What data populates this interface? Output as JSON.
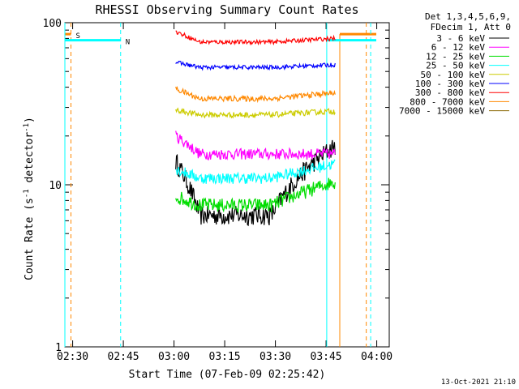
{
  "chart_data": {
    "type": "line",
    "title": "RHESSI Observing Summary Count Rates",
    "xlabel": "Start Time (07-Feb-09 02:25:42)",
    "ylabel_main": "Count Rate (s",
    "ylabel_sup1": "-1",
    "ylabel_mid": " detector",
    "ylabel_sup2": "-1",
    "ylabel_end": ")",
    "yscale": "log",
    "ylim": [
      1,
      100
    ],
    "xlim_minutes": [
      2.0,
      98.0
    ],
    "x_ticks": [
      {
        "label": "02:30",
        "min": 4.3
      },
      {
        "label": "02:45",
        "min": 19.3
      },
      {
        "label": "03:00",
        "min": 34.3
      },
      {
        "label": "03:15",
        "min": 49.3
      },
      {
        "label": "03:30",
        "min": 64.3
      },
      {
        "label": "03:45",
        "min": 79.3
      },
      {
        "label": "04:00",
        "min": 94.3
      }
    ],
    "y_ticks": [
      {
        "label": "1",
        "value": 1
      },
      {
        "label": "10",
        "value": 10
      },
      {
        "label": "100",
        "value": 100
      }
    ],
    "legend_header_1": "Det 1,3,4,5,6,9,",
    "legend_header_2": "FDecim 1, Att 0",
    "series": [
      {
        "name": "3 - 6 keV",
        "color": "#000000",
        "start": 14.0,
        "end": 17.5,
        "level": 6.5,
        "noise": 0.14
      },
      {
        "name": "6 - 12 keV",
        "color": "#ff00ff",
        "start": 20.0,
        "end": 15.5,
        "level": 15.5,
        "noise": 0.08
      },
      {
        "name": "12 - 25 keV",
        "color": "#00dd00",
        "start": 8.5,
        "end": 10.5,
        "level": 7.5,
        "noise": 0.1
      },
      {
        "name": "25 - 50 keV",
        "color": "#00ffff",
        "start": 12.5,
        "end": 13.5,
        "level": 11.0,
        "noise": 0.08
      },
      {
        "name": "50 - 100 keV",
        "color": "#cccc00",
        "start": 29.0,
        "end": 28.5,
        "level": 27.0,
        "noise": 0.04
      },
      {
        "name": "100 - 300 keV",
        "color": "#0000ff",
        "start": 57.0,
        "end": 55.0,
        "level": 53.0,
        "noise": 0.03
      },
      {
        "name": "300 - 800 keV",
        "color": "#ff0000",
        "start": 88.0,
        "end": 80.0,
        "level": 76.0,
        "noise": 0.03
      },
      {
        "name": "800 - 7000 keV",
        "color": "#ff8800",
        "start": 39.0,
        "end": 37.0,
        "level": 34.0,
        "noise": 0.04
      },
      {
        "name": "7000 - 15000 keV",
        "color": "#886600",
        "start": 0,
        "end": 0,
        "level": 0,
        "noise": 0
      }
    ],
    "data_window_minutes": [
      34.8,
      82.0
    ],
    "attenuator_lines": {
      "saa": {
        "label": "S",
        "color": "#ff8800",
        "min": [
          3.8,
          91.2
        ],
        "level": 85
      },
      "night": {
        "label": "N",
        "color": "#00ffff",
        "min": [
          2.0,
          18.5,
          79.5,
          92.5
        ],
        "level": 78
      }
    },
    "footer_date": "13-Oct-2021 21:10"
  }
}
